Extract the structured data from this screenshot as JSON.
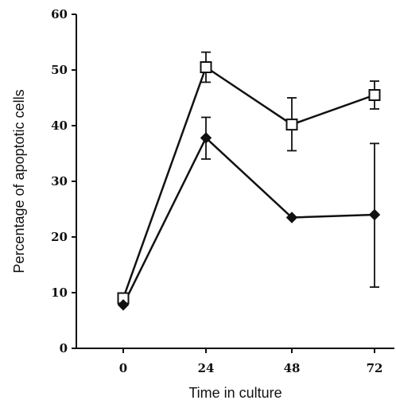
{
  "chart_data": {
    "type": "line",
    "xlabel": "Time in culture",
    "ylabel": "Percentage of apoptotic cells",
    "x": [
      0,
      24,
      48,
      72
    ],
    "x_ticks": [
      "0",
      "24",
      "48",
      "72"
    ],
    "ylim": [
      0,
      60
    ],
    "y_ticks": [
      "0",
      "10",
      "20",
      "30",
      "40",
      "50",
      "60"
    ],
    "grid": false,
    "series": [
      {
        "marker": "open-square",
        "values": [
          9,
          50.5,
          40.2,
          45.5
        ],
        "err_low": [
          9,
          47.8,
          35.5,
          43
        ],
        "err_high": [
          9,
          53.2,
          45,
          48
        ]
      },
      {
        "marker": "filled-diamond",
        "values": [
          7.8,
          37.8,
          23.5,
          24
        ],
        "err_low": [
          7.8,
          34,
          23.5,
          11
        ],
        "err_high": [
          7.8,
          41.5,
          23.5,
          36.8
        ]
      }
    ]
  }
}
